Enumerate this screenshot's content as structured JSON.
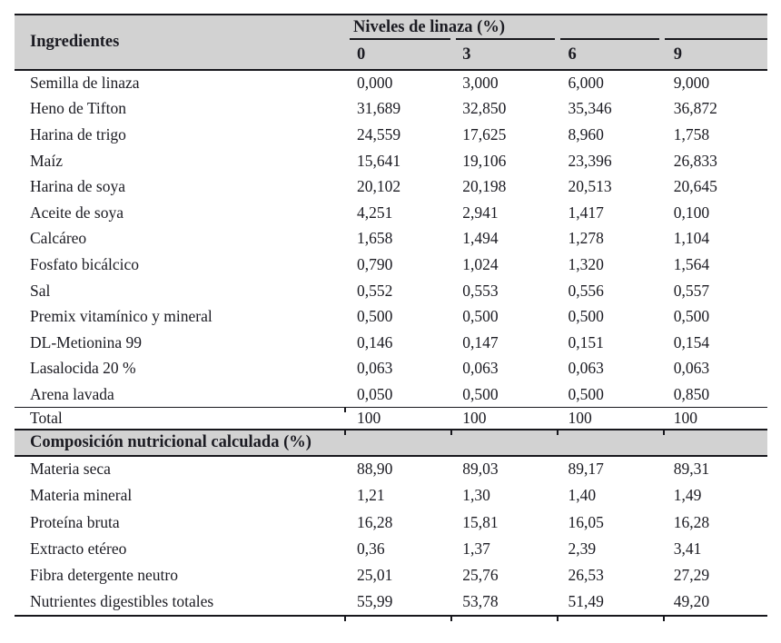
{
  "colors": {
    "page_bg": "#ffffff",
    "header_bg": "#d2d2d2",
    "border": "#17171c",
    "text": "#1b1b22"
  },
  "table": {
    "header": {
      "ingredients_label": "Ingredientes",
      "group_label": "Niveles de linaza (%)",
      "level_columns": [
        "0",
        "3",
        "6",
        "9"
      ]
    },
    "ingredient_rows": [
      {
        "label": "Semilla de linaza",
        "values": [
          "0,000",
          "3,000",
          "6,000",
          "9,000"
        ]
      },
      {
        "label": "Heno de Tifton",
        "values": [
          "31,689",
          "32,850",
          "35,346",
          "36,872"
        ]
      },
      {
        "label": "Harina de trigo",
        "values": [
          "24,559",
          "17,625",
          "8,960",
          "1,758"
        ]
      },
      {
        "label": "Maíz",
        "values": [
          "15,641",
          "19,106",
          "23,396",
          "26,833"
        ]
      },
      {
        "label": "Harina de soya",
        "values": [
          "20,102",
          "20,198",
          "20,513",
          "20,645"
        ]
      },
      {
        "label": "Aceite de soya",
        "values": [
          "4,251",
          "2,941",
          "1,417",
          "0,100"
        ]
      },
      {
        "label": "Calcáreo",
        "values": [
          "1,658",
          "1,494",
          "1,278",
          "1,104"
        ]
      },
      {
        "label": "Fosfato bicálcico",
        "values": [
          "0,790",
          "1,024",
          "1,320",
          "1,564"
        ]
      },
      {
        "label": "Sal",
        "values": [
          "0,552",
          "0,553",
          "0,556",
          "0,557"
        ]
      },
      {
        "label": "Premix vitamínico y mineral",
        "values": [
          "0,500",
          "0,500",
          "0,500",
          "0,500"
        ]
      },
      {
        "label": "DL-Metionina 99",
        "values": [
          "0,146",
          "0,147",
          "0,151",
          "0,154"
        ]
      },
      {
        "label": "Lasalocida 20 %",
        "values": [
          "0,063",
          "0,063",
          "0,063",
          "0,063"
        ]
      },
      {
        "label": "Arena lavada",
        "values": [
          "0,050",
          "0,500",
          "0,500",
          "0,850"
        ]
      }
    ],
    "total_rows": [
      {
        "label": "Total",
        "values": [
          "100",
          "100",
          "100",
          "100"
        ]
      }
    ],
    "section_header": "Composición nutricional calculada (%)",
    "nutrition_rows": [
      {
        "label": "Materia seca",
        "values": [
          "88,90",
          "89,03",
          "89,17",
          "89,31"
        ]
      },
      {
        "label": "Materia mineral",
        "values": [
          "1,21",
          "1,30",
          "1,40",
          "1,49"
        ]
      },
      {
        "label": "Proteína bruta",
        "values": [
          "16,28",
          "15,81",
          "16,05",
          "16,28"
        ]
      },
      {
        "label": "Extracto etéreo",
        "values": [
          "0,36",
          "1,37",
          "2,39",
          "3,41"
        ]
      },
      {
        "label": "Fibra detergente neutro",
        "values": [
          "25,01",
          "25,76",
          "26,53",
          "27,29"
        ]
      },
      {
        "label": "Nutrientes digestibles totales",
        "values": [
          "55,99",
          "53,78",
          "51,49",
          "49,20"
        ]
      }
    ]
  }
}
